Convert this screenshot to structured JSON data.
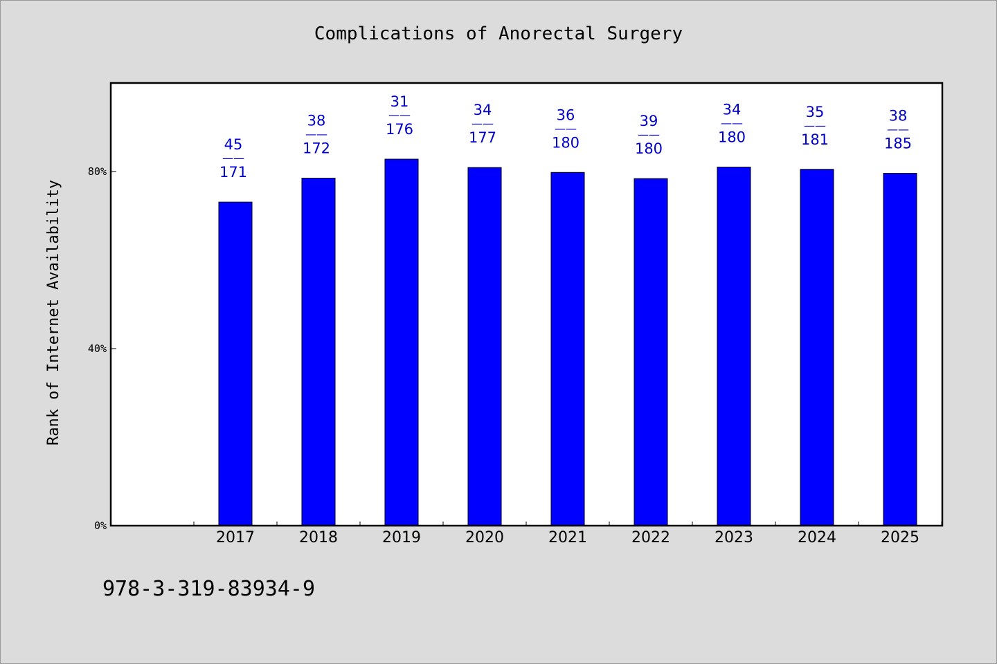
{
  "chart_data": {
    "type": "bar",
    "title": "Complications of Anorectal Surgery",
    "xlabel": "",
    "ylabel": "Rank of Internet Availability",
    "categories": [
      "2017",
      "2018",
      "2019",
      "2020",
      "2021",
      "2022",
      "2023",
      "2024",
      "2025"
    ],
    "series": [
      {
        "values": [
          73.1,
          78.5,
          82.8,
          80.9,
          79.8,
          78.4,
          81.0,
          80.5,
          79.6
        ]
      }
    ],
    "data_labels": [
      {
        "rank": "45",
        "separator": "——",
        "total": "171"
      },
      {
        "rank": "38",
        "separator": "——",
        "total": "172"
      },
      {
        "rank": "31",
        "separator": "——",
        "total": "176"
      },
      {
        "rank": "34",
        "separator": "——",
        "total": "177"
      },
      {
        "rank": "36",
        "separator": "——",
        "total": "180"
      },
      {
        "rank": "39",
        "separator": "——",
        "total": "180"
      },
      {
        "rank": "34",
        "separator": "——",
        "total": "180"
      },
      {
        "rank": "35",
        "separator": "——",
        "total": "181"
      },
      {
        "rank": "38",
        "separator": "——",
        "total": "185"
      }
    ],
    "yticks": [
      0,
      40,
      80
    ],
    "ytick_labels": [
      "0%",
      "40%",
      "80%"
    ],
    "ylim": [
      0,
      100
    ],
    "grid": false,
    "colors": {
      "bar": "#0000ff",
      "label": "#0000cc",
      "plot_bg": "#ffffff",
      "page_bg": "#dcdcdc"
    }
  },
  "footer": {
    "code": "978-3-319-83934-9"
  }
}
